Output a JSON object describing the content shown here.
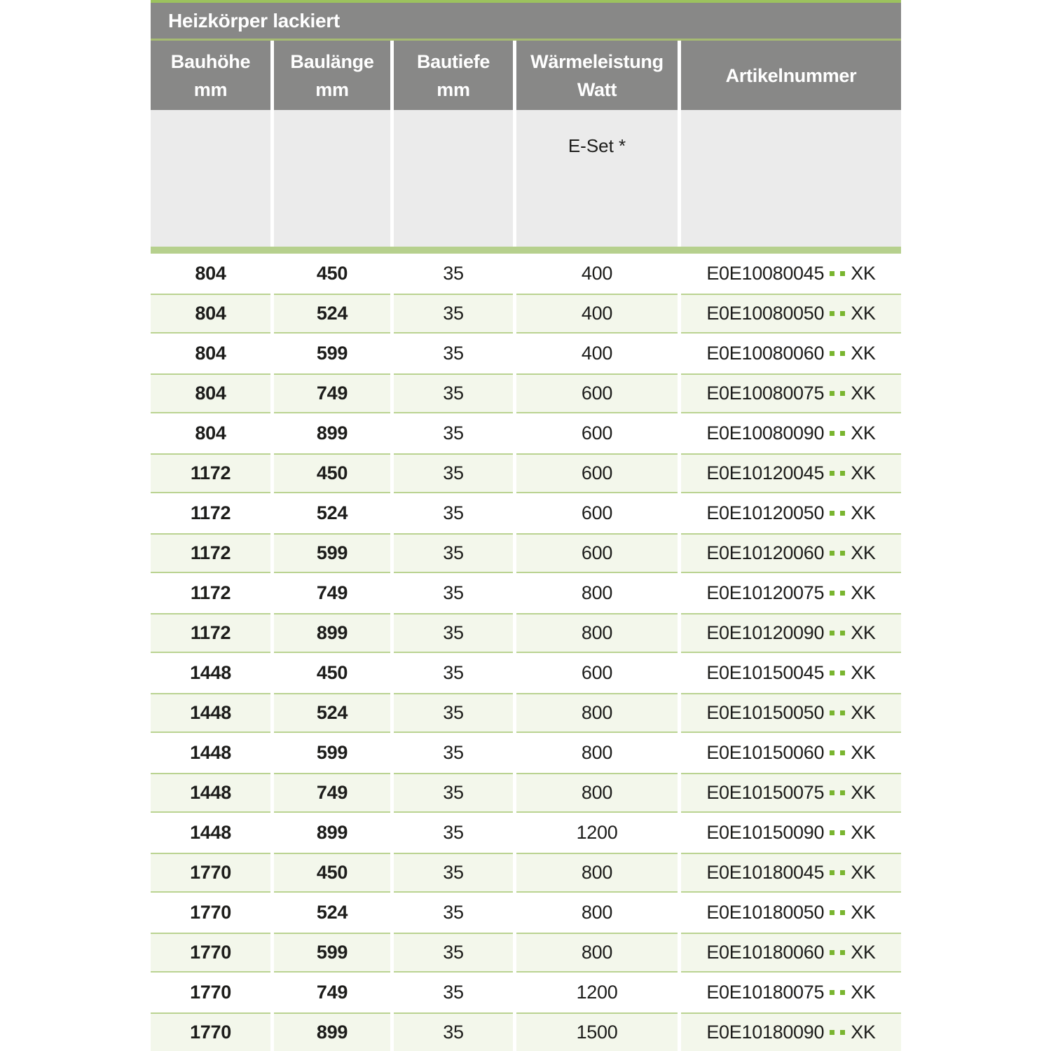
{
  "table": {
    "title": "Heizkörper lackiert",
    "columns": [
      {
        "id": "bauhoehe",
        "line1": "Bauhöhe",
        "line2": "mm"
      },
      {
        "id": "baulaenge",
        "line1": "Baulänge",
        "line2": "mm"
      },
      {
        "id": "bautiefe",
        "line1": "Bautiefe",
        "line2": "mm"
      },
      {
        "id": "waermeleistung",
        "line1": "Wärmeleistung",
        "line2": "Watt"
      },
      {
        "id": "artikelnummer",
        "line1": "Artikelnummer",
        "line2": ""
      }
    ],
    "subheader": {
      "eset": "E-Set *"
    },
    "rows": [
      {
        "bauhoehe": "804",
        "baulaenge": "450",
        "bautiefe": "35",
        "watt": "400",
        "artikel": "E0E10080045",
        "dots": "..",
        "suffix": "XK"
      },
      {
        "bauhoehe": "804",
        "baulaenge": "524",
        "bautiefe": "35",
        "watt": "400",
        "artikel": "E0E10080050",
        "dots": "..",
        "suffix": "XK"
      },
      {
        "bauhoehe": "804",
        "baulaenge": "599",
        "bautiefe": "35",
        "watt": "400",
        "artikel": "E0E10080060",
        "dots": "..",
        "suffix": "XK"
      },
      {
        "bauhoehe": "804",
        "baulaenge": "749",
        "bautiefe": "35",
        "watt": "600",
        "artikel": "E0E10080075",
        "dots": "..",
        "suffix": "XK"
      },
      {
        "bauhoehe": "804",
        "baulaenge": "899",
        "bautiefe": "35",
        "watt": "600",
        "artikel": "E0E10080090",
        "dots": "..",
        "suffix": "XK"
      },
      {
        "bauhoehe": "1172",
        "baulaenge": "450",
        "bautiefe": "35",
        "watt": "600",
        "artikel": "E0E10120045",
        "dots": "..",
        "suffix": "XK"
      },
      {
        "bauhoehe": "1172",
        "baulaenge": "524",
        "bautiefe": "35",
        "watt": "600",
        "artikel": "E0E10120050",
        "dots": "..",
        "suffix": "XK"
      },
      {
        "bauhoehe": "1172",
        "baulaenge": "599",
        "bautiefe": "35",
        "watt": "600",
        "artikel": "E0E10120060",
        "dots": "..",
        "suffix": "XK"
      },
      {
        "bauhoehe": "1172",
        "baulaenge": "749",
        "bautiefe": "35",
        "watt": "800",
        "artikel": "E0E10120075",
        "dots": "..",
        "suffix": "XK"
      },
      {
        "bauhoehe": "1172",
        "baulaenge": "899",
        "bautiefe": "35",
        "watt": "800",
        "artikel": "E0E10120090",
        "dots": "..",
        "suffix": "XK"
      },
      {
        "bauhoehe": "1448",
        "baulaenge": "450",
        "bautiefe": "35",
        "watt": "600",
        "artikel": "E0E10150045",
        "dots": "..",
        "suffix": "XK"
      },
      {
        "bauhoehe": "1448",
        "baulaenge": "524",
        "bautiefe": "35",
        "watt": "800",
        "artikel": "E0E10150050",
        "dots": "..",
        "suffix": "XK"
      },
      {
        "bauhoehe": "1448",
        "baulaenge": "599",
        "bautiefe": "35",
        "watt": "800",
        "artikel": "E0E10150060",
        "dots": "..",
        "suffix": "XK"
      },
      {
        "bauhoehe": "1448",
        "baulaenge": "749",
        "bautiefe": "35",
        "watt": "800",
        "artikel": "E0E10150075",
        "dots": "..",
        "suffix": "XK"
      },
      {
        "bauhoehe": "1448",
        "baulaenge": "899",
        "bautiefe": "35",
        "watt": "1200",
        "artikel": "E0E10150090",
        "dots": "..",
        "suffix": "XK"
      },
      {
        "bauhoehe": "1770",
        "baulaenge": "450",
        "bautiefe": "35",
        "watt": "800",
        "artikel": "E0E10180045",
        "dots": "..",
        "suffix": "XK"
      },
      {
        "bauhoehe": "1770",
        "baulaenge": "524",
        "bautiefe": "35",
        "watt": "800",
        "artikel": "E0E10180050",
        "dots": "..",
        "suffix": "XK"
      },
      {
        "bauhoehe": "1770",
        "baulaenge": "599",
        "bautiefe": "35",
        "watt": "800",
        "artikel": "E0E10180060",
        "dots": "..",
        "suffix": "XK"
      },
      {
        "bauhoehe": "1770",
        "baulaenge": "749",
        "bautiefe": "35",
        "watt": "1200",
        "artikel": "E0E10180075",
        "dots": "..",
        "suffix": "XK"
      },
      {
        "bauhoehe": "1770",
        "baulaenge": "899",
        "bautiefe": "35",
        "watt": "1500",
        "artikel": "E0E10180090",
        "dots": "..",
        "suffix": "XK"
      }
    ]
  },
  "colors": {
    "accent_green": "#9cc25e",
    "divider_green": "#a6bb72",
    "bar_green": "#b6d08d",
    "row_green_bg": "#f3f7eb",
    "row_green_border": "#bad391",
    "dots_green": "#79b52f",
    "header_gray": "#888887",
    "subheader_gray": "#ebebeb"
  }
}
